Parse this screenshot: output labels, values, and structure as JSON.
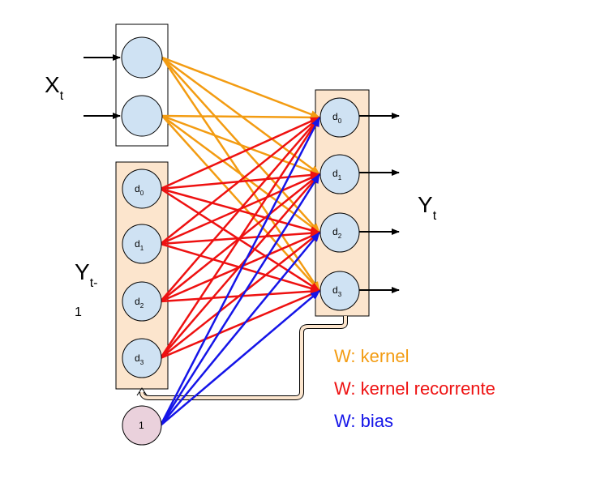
{
  "labels": {
    "xt_main": "X",
    "xt_sub": "t",
    "yt_main": "Y",
    "yt_sub": "t",
    "yprev_main": "Y",
    "yprev_sub": "t-",
    "yprev_line2": "1"
  },
  "nodes": {
    "prev_state": [
      {
        "main": "d",
        "sub": "0"
      },
      {
        "main": "d",
        "sub": "1"
      },
      {
        "main": "d",
        "sub": "2"
      },
      {
        "main": "d",
        "sub": "3"
      }
    ],
    "output": [
      {
        "main": "d",
        "sub": "0"
      },
      {
        "main": "d",
        "sub": "1"
      },
      {
        "main": "d",
        "sub": "2"
      },
      {
        "main": "d",
        "sub": "3"
      }
    ],
    "bias": "1"
  },
  "legend": [
    {
      "label": "W: kernel",
      "color": "#f39c12"
    },
    {
      "label": "W: kernel recorrente",
      "color": "#ee1111"
    },
    {
      "label": "W: bias",
      "color": "#1515e8"
    }
  ],
  "colors": {
    "kernel": "#f39c12",
    "recurrent": "#ee1111",
    "bias": "#1515e8",
    "node_fill": "#cfe2f3",
    "box_fill": "#fce5cd",
    "bias_fill": "#ead1dc"
  }
}
